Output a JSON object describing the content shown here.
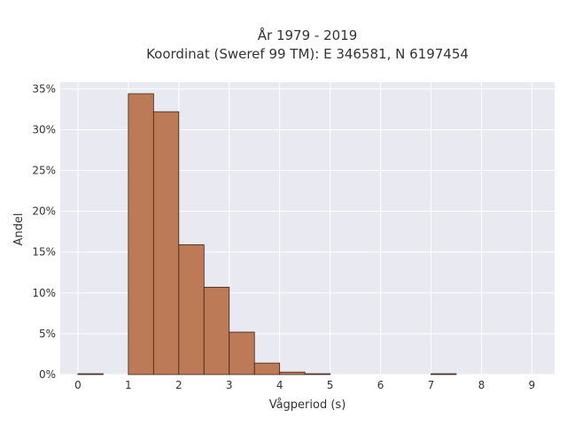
{
  "chart_data": {
    "type": "bar",
    "title_line1": "År 1979 - 2019",
    "title_line2": "Koordinat (Sweref 99 TM): E 346581, N 6197454",
    "xlabel": "Vågperiod (s)",
    "ylabel": "Andel",
    "xlim": [
      -0.35,
      9.45
    ],
    "ylim": [
      0,
      35.8
    ],
    "x_ticks": [
      0,
      1,
      2,
      3,
      4,
      5,
      6,
      7,
      8,
      9
    ],
    "y_ticks": [
      0,
      5,
      10,
      15,
      20,
      25,
      30,
      35
    ],
    "y_tick_suffix": "%",
    "bin_width": 0.5,
    "bins": [
      {
        "x": 0.0,
        "value": 0.1
      },
      {
        "x": 1.0,
        "value": 34.4
      },
      {
        "x": 1.5,
        "value": 32.2
      },
      {
        "x": 2.0,
        "value": 15.9
      },
      {
        "x": 2.5,
        "value": 10.7
      },
      {
        "x": 3.0,
        "value": 5.2
      },
      {
        "x": 3.5,
        "value": 1.4
      },
      {
        "x": 4.0,
        "value": 0.3
      },
      {
        "x": 4.5,
        "value": 0.1
      },
      {
        "x": 7.0,
        "value": 0.1
      }
    ],
    "bar_color": "#bd7a56",
    "bar_edge_color": "#3d2416",
    "plot_bg": "#e9e9f1",
    "grid": true
  }
}
